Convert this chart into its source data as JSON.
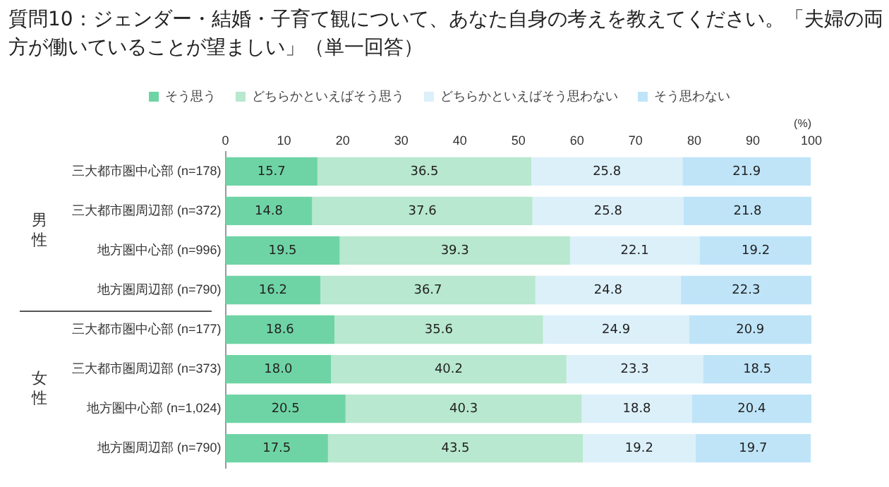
{
  "chart_data": {
    "type": "bar",
    "orientation": "horizontal",
    "stacked": true,
    "title": "質問10：ジェンダー・結婚・子育て観について、あなた自身の考えを教えてください。「夫婦の両方が働いていることが望ましい」（単一回答）",
    "xlabel": "(%)",
    "categories": [
      "三大都市圏中心部 (n=178)",
      "三大都市圏周辺部 (n=372)",
      "地方圏中心部 (n=996)",
      "地方圏周辺部 (n=790)",
      "三大都市圏中心部 (n=177)",
      "三大都市圏周辺部 (n=373)",
      "地方圏中心部 (n=1,024)",
      "地方圏周辺部 (n=790)"
    ],
    "annotations": [
      "男性",
      "女性"
    ],
    "series": [
      {
        "name": "そう思う",
        "color": "#6fd4a5",
        "values": [
          15.7,
          14.8,
          19.5,
          16.2,
          18.6,
          18.0,
          20.5,
          17.5
        ]
      },
      {
        "name": "どちらかといえばそう思う",
        "color": "#b8e8cf",
        "values": [
          36.5,
          37.6,
          39.3,
          36.7,
          35.6,
          40.2,
          40.3,
          43.5
        ]
      },
      {
        "name": "どちらかといえばそう思わない",
        "color": "#dcf0fa",
        "values": [
          25.8,
          25.8,
          22.1,
          24.8,
          24.9,
          23.3,
          18.8,
          19.2
        ]
      },
      {
        "name": "そう思わない",
        "color": "#bfe4f8",
        "values": [
          21.9,
          21.8,
          19.2,
          22.3,
          20.9,
          18.5,
          20.4,
          19.7
        ]
      }
    ],
    "value_labels": [
      [
        "15.7",
        "14.8",
        "19.5",
        "16.2",
        "18.6",
        "18.0",
        "20.5",
        "17.5"
      ],
      [
        "36.5",
        "37.6",
        "39.3",
        "36.7",
        "35.6",
        "40.2",
        "40.3",
        "43.5"
      ],
      [
        "25.8",
        "25.8",
        "22.1",
        "24.8",
        "24.9",
        "23.3",
        "18.8",
        "19.2"
      ],
      [
        "21.9",
        "21.8",
        "19.2",
        "22.3",
        "20.9",
        "18.5",
        "20.4",
        "19.7"
      ]
    ],
    "xlim": [
      0,
      100
    ],
    "xticks": [
      0,
      10,
      20,
      30,
      40,
      50,
      60,
      70,
      80,
      90,
      100
    ],
    "grid": false,
    "legend": "top"
  }
}
